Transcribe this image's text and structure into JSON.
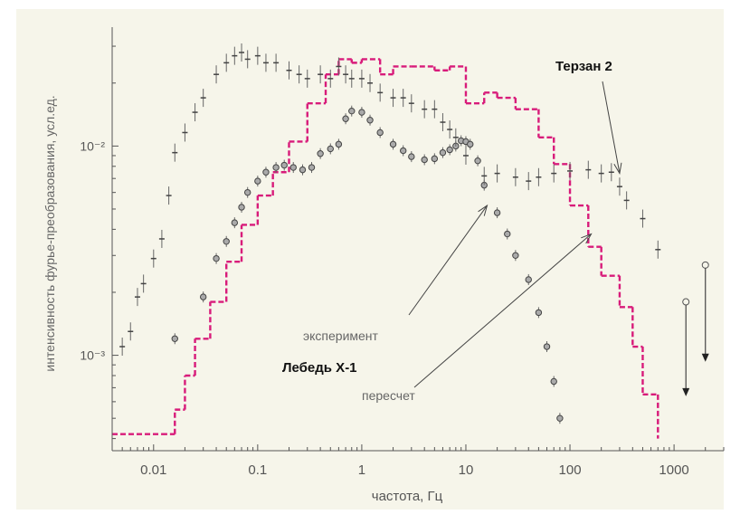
{
  "chart_data": {
    "type": "scatter",
    "xscale": "log",
    "yscale": "log",
    "xlim": [
      0.004,
      3000
    ],
    "ylim": [
      0.00035,
      0.037
    ],
    "xlabel": "частота, Гц",
    "ylabel": "интенсивность фурье-преобразования, усл.ед.",
    "xticks": [
      {
        "value": 0.01,
        "label": "0.01"
      },
      {
        "value": 0.1,
        "label": "0.1"
      },
      {
        "value": 1,
        "label": "1"
      },
      {
        "value": 10,
        "label": "10"
      },
      {
        "value": 100,
        "label": "100"
      },
      {
        "value": 1000,
        "label": "1000"
      }
    ],
    "yticks": [
      {
        "value": 0.01,
        "label": "10⁻²"
      },
      {
        "value": 0.001,
        "label": "10⁻³"
      }
    ],
    "grid": false,
    "annotations": [
      {
        "text": "Терзан 2",
        "bold": true,
        "arrow_to": [
          300,
          0.0074
        ]
      },
      {
        "text": "эксперимент",
        "bold": false
      },
      {
        "text": "Лебедь X-1",
        "bold": true,
        "arrow_to": [
          16,
          0.0052
        ]
      },
      {
        "text": "пересчет",
        "bold": false,
        "arrow_to": [
          160,
          0.0038
        ]
      }
    ],
    "series": [
      {
        "color": "#d81b7a",
        "style": "step",
        "x": [
          0.004,
          0.012,
          0.016,
          0.02,
          0.025,
          0.035,
          0.05,
          0.07,
          0.1,
          0.14,
          0.2,
          0.3,
          0.45,
          0.6,
          0.8,
          1,
          1.5,
          2,
          3,
          5,
          7,
          10,
          15,
          20,
          30,
          50,
          70,
          100,
          150,
          200,
          300,
          400,
          500,
          700
        ],
        "values": [
          0.00042,
          0.00042,
          0.00055,
          0.0008,
          0.0012,
          0.0018,
          0.0028,
          0.0042,
          0.0058,
          0.0075,
          0.0105,
          0.016,
          0.022,
          0.026,
          0.025,
          0.026,
          0.022,
          0.024,
          0.024,
          0.023,
          0.024,
          0.016,
          0.018,
          0.017,
          0.015,
          0.011,
          0.0082,
          0.0052,
          0.0033,
          0.0024,
          0.0017,
          0.0011,
          0.00065,
          0.0004
        ]
      },
      {
        "color": "#333333",
        "style": "points",
        "x": [
          0.016,
          0.03,
          0.04,
          0.05,
          0.06,
          0.07,
          0.08,
          0.1,
          0.12,
          0.15,
          0.18,
          0.22,
          0.27,
          0.33,
          0.4,
          0.5,
          0.6,
          0.7,
          0.8,
          1.0,
          1.2,
          1.5,
          2.0,
          2.5,
          3,
          4,
          5,
          6,
          7,
          8,
          9,
          10,
          11,
          13,
          15,
          20,
          25,
          30,
          40,
          50,
          60,
          70,
          80
        ],
        "values": [
          0.0012,
          0.0019,
          0.0029,
          0.0035,
          0.0043,
          0.0051,
          0.006,
          0.0068,
          0.0075,
          0.0079,
          0.0081,
          0.0079,
          0.0077,
          0.0079,
          0.0092,
          0.0097,
          0.0102,
          0.0135,
          0.0147,
          0.0145,
          0.0133,
          0.0116,
          0.0102,
          0.0095,
          0.0089,
          0.0086,
          0.0087,
          0.0093,
          0.0096,
          0.01,
          0.0106,
          0.0105,
          0.0102,
          0.0085,
          0.0065,
          0.0048,
          0.0038,
          0.003,
          0.0023,
          0.0016,
          0.0011,
          0.00075,
          0.0005
        ]
      },
      {
        "color": "#444444",
        "style": "points",
        "x": [
          0.005,
          0.006,
          0.007,
          0.008,
          0.01,
          0.012,
          0.014,
          0.016,
          0.02,
          0.025,
          0.03,
          0.04,
          0.05,
          0.06,
          0.07,
          0.08,
          0.1,
          0.12,
          0.15,
          0.2,
          0.25,
          0.3,
          0.4,
          0.5,
          0.6,
          0.7,
          0.8,
          1.0,
          1.2,
          1.5,
          2,
          2.5,
          3,
          4,
          5,
          6,
          7,
          8,
          10,
          15,
          20,
          30,
          40,
          50,
          70,
          100,
          150,
          200,
          250,
          300,
          350,
          500,
          700
        ],
        "values": [
          0.0011,
          0.0013,
          0.0019,
          0.0022,
          0.0029,
          0.0036,
          0.0058,
          0.0093,
          0.0116,
          0.0145,
          0.017,
          0.022,
          0.025,
          0.027,
          0.028,
          0.026,
          0.027,
          0.025,
          0.025,
          0.023,
          0.022,
          0.021,
          0.022,
          0.021,
          0.024,
          0.022,
          0.021,
          0.021,
          0.02,
          0.018,
          0.017,
          0.017,
          0.016,
          0.015,
          0.015,
          0.013,
          0.012,
          0.011,
          0.009,
          0.0072,
          0.0074,
          0.0071,
          0.0068,
          0.0071,
          0.0074,
          0.0076,
          0.0077,
          0.0074,
          0.0075,
          0.0064,
          0.0055,
          0.0045,
          0.0032
        ]
      }
    ],
    "upper_limits": [
      {
        "x": 1300,
        "y": 0.0018,
        "y_to": 0.00065
      },
      {
        "x": 2000,
        "y": 0.0027,
        "y_to": 0.00095
      }
    ]
  }
}
